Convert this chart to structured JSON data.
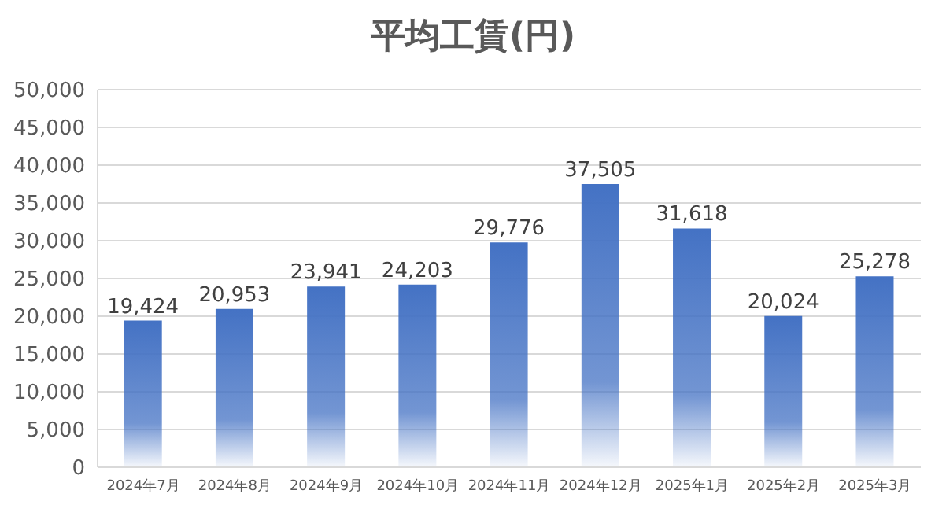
{
  "chart_data": {
    "type": "bar",
    "title": "平均工賃(円)",
    "categories": [
      "2024年7月",
      "2024年8月",
      "2024年9月",
      "2024年10月",
      "2024年11月",
      "2024年12月",
      "2025年1月",
      "2025年2月",
      "2025年3月"
    ],
    "values": [
      19424,
      20953,
      23941,
      24203,
      29776,
      37505,
      31618,
      20024,
      25278
    ],
    "value_labels": [
      "19,424",
      "20,953",
      "23,941",
      "24,203",
      "29,776",
      "37,505",
      "31,618",
      "20,024",
      "25,278"
    ],
    "color": "#4472c4",
    "ylim": [
      0,
      50000
    ],
    "yticks": [
      0,
      {
        "value": 5000,
        "label": "5,000"
      },
      {
        "value": 10000,
        "label": "10,000"
      },
      {
        "value": 15000,
        "label": "15,000"
      },
      {
        "value": 20000,
        "label": "20,000"
      },
      {
        "value": 25000,
        "label": "25,000"
      },
      {
        "value": 30000,
        "label": "30,000"
      },
      {
        "value": 35000,
        "label": "35,000"
      },
      {
        "value": 40000,
        "label": "40,000"
      },
      {
        "value": 45000,
        "label": "45,000"
      },
      {
        "value": 50000,
        "label": "50,000"
      }
    ],
    "grid": "y"
  }
}
